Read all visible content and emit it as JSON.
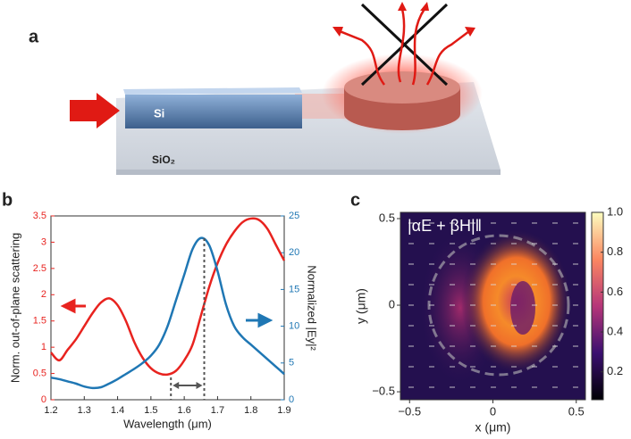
{
  "panel_labels": [
    "a",
    "b",
    "c"
  ],
  "diagram": {
    "waveguide_label": "Si",
    "substrate_label": "SiO₂"
  },
  "chart_data": [
    {
      "type": "line",
      "xlabel": "Wavelength (μm)",
      "ylabel": "Norm. out-of-plane scattering",
      "y2label": "Normalized |Ey|²",
      "x": [
        1.2,
        1.225,
        1.25,
        1.275,
        1.3,
        1.325,
        1.35,
        1.375,
        1.4,
        1.425,
        1.45,
        1.475,
        1.5,
        1.525,
        1.55,
        1.575,
        1.6,
        1.625,
        1.65,
        1.675,
        1.7,
        1.725,
        1.75,
        1.775,
        1.8,
        1.825,
        1.85,
        1.875,
        1.9
      ],
      "series": [
        {
          "color": "#e8231f",
          "values": [
            0.9,
            0.75,
            0.95,
            1.15,
            1.4,
            1.65,
            1.85,
            1.93,
            1.8,
            1.5,
            1.1,
            0.8,
            0.6,
            0.5,
            0.48,
            0.55,
            0.75,
            1.05,
            1.6,
            2.15,
            2.6,
            2.95,
            3.2,
            3.38,
            3.45,
            3.42,
            3.25,
            2.95,
            2.65
          ]
        },
        {
          "color": "#1f77b4",
          "axis": "y2",
          "values": [
            3,
            2.8,
            2.5,
            2.2,
            1.8,
            1.6,
            1.7,
            2.2,
            2.8,
            3.5,
            4.2,
            5,
            6,
            7.5,
            10,
            13.5,
            17,
            20.5,
            22,
            21,
            17.5,
            13,
            10,
            8.5,
            7.5,
            6.5,
            5.5,
            4.5,
            3.5
          ]
        }
      ],
      "vlines": [
        1.56,
        1.66
      ],
      "xlim": [
        1.2,
        1.9
      ],
      "xticks": [
        1.2,
        1.3,
        1.4,
        1.5,
        1.6,
        1.7,
        1.8,
        1.9
      ],
      "ylim": [
        0,
        3.5
      ],
      "yticks": [
        0,
        0.5,
        1,
        1.5,
        2,
        2.5,
        3,
        3.5
      ],
      "y2lim": [
        0,
        25
      ],
      "y2ticks": [
        0,
        5,
        10,
        15,
        20,
        25
      ]
    },
    {
      "type": "heatmap",
      "title": "|αE + βH|‖",
      "xlabel": "x (μm)",
      "ylabel": "y (μm)",
      "xlim": [
        -0.555,
        0.555
      ],
      "xticks": [
        {
          "value": -0.5,
          "label": "−0.5"
        },
        0,
        0.5
      ],
      "ylim": [
        -0.546,
        0.536
      ],
      "yticks": [
        {
          "value": -0.5,
          "label": "−0.5"
        },
        0,
        0.5
      ],
      "clim": [
        0.06,
        1.0
      ],
      "cticks": [
        0.2,
        0.4,
        0.6,
        0.8,
        {
          "value": 1,
          "label": "1.0"
        }
      ]
    }
  ]
}
